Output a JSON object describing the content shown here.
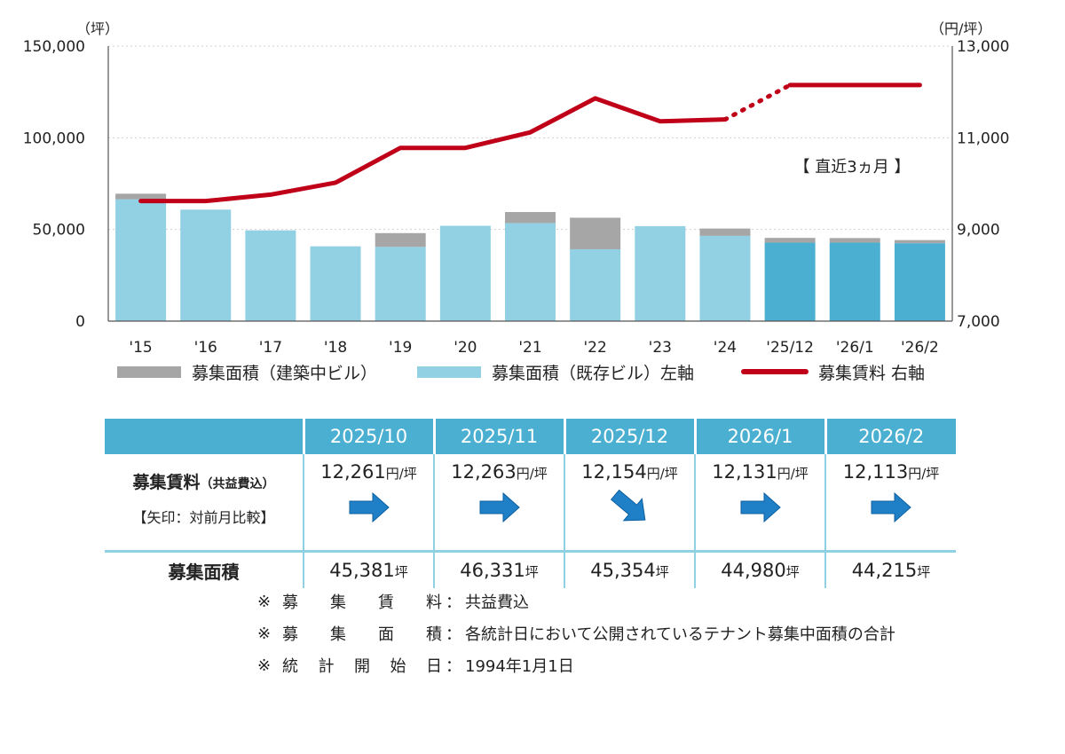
{
  "chart_data": {
    "type": "bar+line",
    "categories": [
      "'15",
      "'16",
      "'17",
      "'18",
      "'19",
      "'20",
      "'21",
      "'22",
      "'23",
      "'24",
      "'25/12",
      "'26/1",
      "'26/2"
    ],
    "series": [
      {
        "name": "募集面積（既存ビル）左軸",
        "type": "bar",
        "axis": "left",
        "stack": "area",
        "color": "#92d0e3",
        "recent_color": "#4bafd1",
        "values": [
          66500,
          60800,
          49500,
          40800,
          40500,
          52000,
          53500,
          39200,
          51800,
          46500,
          42800,
          42800,
          42500
        ]
      },
      {
        "name": "募集面積（建築中ビル）",
        "type": "bar",
        "axis": "left",
        "stack": "area",
        "color": "#a6a6a6",
        "values": [
          3000,
          0,
          0,
          0,
          7500,
          0,
          6000,
          17200,
          0,
          4000,
          2600,
          2500,
          1700
        ]
      },
      {
        "name": "募集賃料 右軸",
        "type": "line",
        "axis": "right",
        "color": "#c00018",
        "values": [
          9620,
          9620,
          9760,
          10020,
          10780,
          10780,
          11120,
          11860,
          11360,
          11400,
          12150,
          12150,
          12150
        ],
        "dashed_segment": [
          9,
          10
        ]
      }
    ],
    "recent_start_index": 10,
    "left_axis": {
      "unit": "（坪）",
      "ylim": [
        0,
        150000
      ],
      "ticks": [
        "0",
        "50,000",
        "100,000",
        "150,000"
      ]
    },
    "right_axis": {
      "unit": "（円/坪）",
      "ylim": [
        7000,
        13000
      ],
      "ticks": [
        "7,000",
        "9,000",
        "11,000",
        "13,000"
      ]
    },
    "annotation": "【 直近3ヵ月 】",
    "legend_placement": "bottom",
    "grid": true
  },
  "table": {
    "months": [
      "2025/10",
      "2025/11",
      "2025/12",
      "2026/1",
      "2026/2"
    ],
    "rent_label": "募集賃料",
    "rent_label_note": "（共益費込）",
    "arrow_note": "【矢印：対前月比較】",
    "rent_values": [
      "12,261",
      "12,263",
      "12,154",
      "12,131",
      "12,113"
    ],
    "rent_unit": "円/坪",
    "rent_trend": [
      "flat",
      "flat",
      "down",
      "flat",
      "flat"
    ],
    "area_label": "募集面積",
    "area_values": [
      "45,381",
      "46,331",
      "45,354",
      "44,980",
      "44,215"
    ],
    "area_unit": "坪"
  },
  "notes": [
    {
      "mark": "※",
      "key": [
        "募",
        "集",
        "賃",
        "料"
      ],
      "colon": "：",
      "text": "共益費込"
    },
    {
      "mark": "※",
      "key": [
        "募",
        "集",
        "面",
        "積"
      ],
      "colon": "：",
      "text": "各統計日において公開されているテナント募集中面積の合計"
    },
    {
      "mark": "※",
      "key": [
        "統",
        "計",
        "開",
        "始",
        "日"
      ],
      "colon": "：",
      "text": "1994年1月1日"
    }
  ]
}
